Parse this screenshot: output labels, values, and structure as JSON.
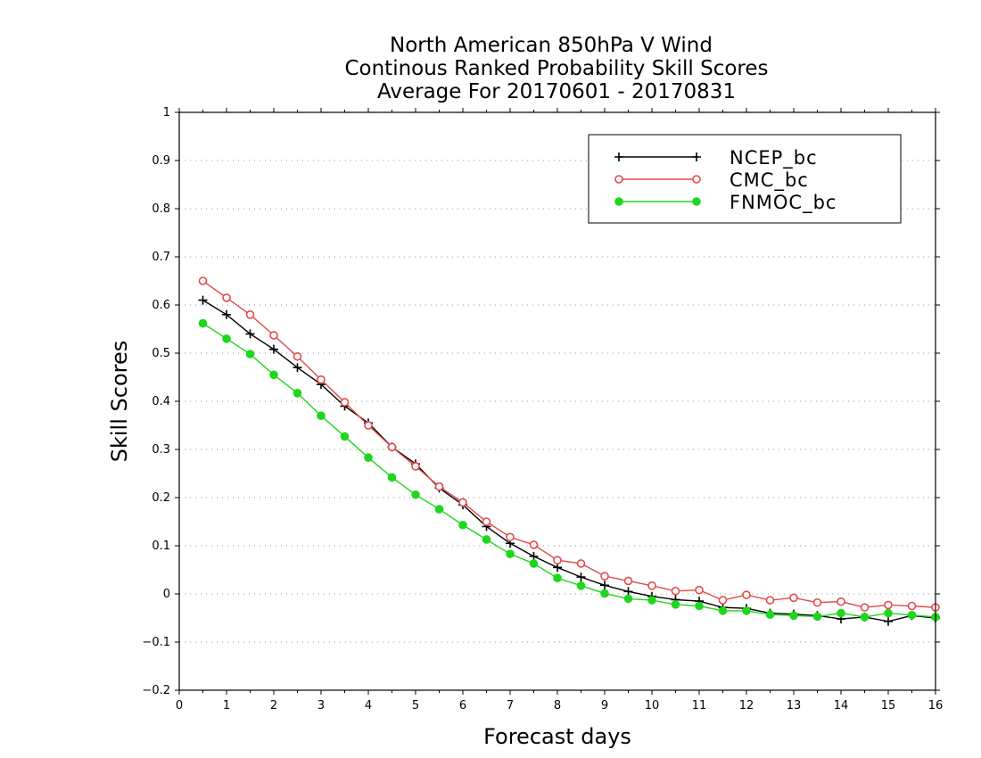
{
  "chart_data": {
    "type": "line",
    "title": [
      "North American 850hPa V Wind",
      "Continous Ranked Probability Skill Scores",
      "Average For 20170601 - 20170831"
    ],
    "xlabel": "Forecast days",
    "ylabel": "Skill Scores",
    "xlim": [
      0,
      16
    ],
    "ylim": [
      -0.2,
      1
    ],
    "xticks": [
      0,
      1,
      2,
      3,
      4,
      5,
      6,
      7,
      8,
      9,
      10,
      11,
      12,
      13,
      14,
      15,
      16
    ],
    "yticks": [
      -0.2,
      -0.1,
      0,
      0.1,
      0.2,
      0.3,
      0.4,
      0.5,
      0.6,
      0.7,
      0.8,
      0.9,
      1
    ],
    "ytick_labels": [
      "−0.2",
      "−0.1",
      "0",
      "0.1",
      "0.2",
      "0.3",
      "0.4",
      "0.5",
      "0.6",
      "0.7",
      "0.8",
      "0.9",
      "1"
    ],
    "grid": true,
    "legend_position": "top-right",
    "x": [
      0.5,
      1,
      1.5,
      2,
      2.5,
      3,
      3.5,
      4,
      4.5,
      5,
      5.5,
      6,
      6.5,
      7,
      7.5,
      8,
      8.5,
      9,
      9.5,
      10,
      10.5,
      11,
      11.5,
      12,
      12.5,
      13,
      13.5,
      14,
      14.5,
      15,
      15.5,
      16
    ],
    "series": [
      {
        "name": "NCEP_bc",
        "color": "#000000",
        "marker": "plus",
        "values": [
          0.61,
          0.58,
          0.54,
          0.508,
          0.47,
          0.435,
          0.39,
          0.355,
          0.305,
          0.27,
          0.22,
          0.185,
          0.14,
          0.105,
          0.078,
          0.055,
          0.035,
          0.018,
          0.005,
          -0.005,
          -0.012,
          -0.015,
          -0.028,
          -0.03,
          -0.04,
          -0.042,
          -0.045,
          -0.052,
          -0.048,
          -0.057,
          -0.045,
          -0.05
        ]
      },
      {
        "name": "CMC_bc",
        "color": "#e34a4a",
        "marker": "open-circle",
        "values": [
          0.65,
          0.615,
          0.58,
          0.537,
          0.493,
          0.445,
          0.398,
          0.35,
          0.305,
          0.265,
          0.223,
          0.19,
          0.15,
          0.118,
          0.102,
          0.07,
          0.063,
          0.037,
          0.027,
          0.017,
          0.006,
          0.008,
          -0.013,
          -0.002,
          -0.013,
          -0.008,
          -0.018,
          -0.016,
          -0.028,
          -0.023,
          -0.025,
          -0.028
        ]
      },
      {
        "name": "FNMOC_bc",
        "color": "#1fd61f",
        "marker": "filled-circle",
        "values": [
          0.562,
          0.53,
          0.498,
          0.455,
          0.417,
          0.37,
          0.327,
          0.283,
          0.242,
          0.206,
          0.176,
          0.143,
          0.113,
          0.083,
          0.063,
          0.033,
          0.017,
          0.001,
          -0.01,
          -0.013,
          -0.022,
          -0.025,
          -0.035,
          -0.035,
          -0.043,
          -0.045,
          -0.047,
          -0.04,
          -0.048,
          -0.04,
          -0.044,
          -0.048
        ]
      }
    ]
  }
}
